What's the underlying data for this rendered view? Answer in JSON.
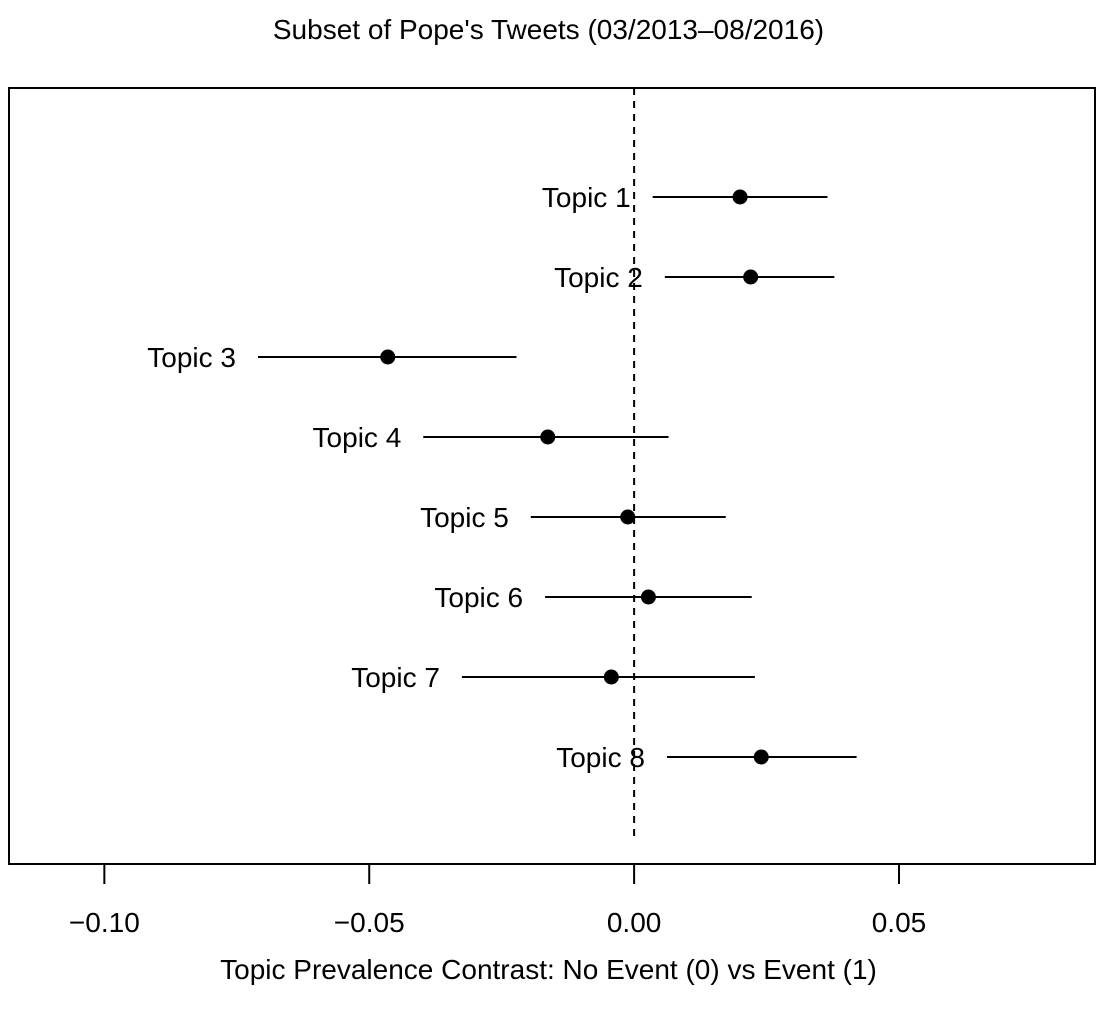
{
  "chart_data": {
    "type": "scatter",
    "title": "Subset of Pope's Tweets (03/2013–08/2016)",
    "xlabel": "Topic Prevalence Contrast:  No Event (0) vs Event (1)",
    "ylabel": "",
    "xlim": [
      -0.118,
      0.087
    ],
    "x_ticks": [
      -0.1,
      -0.05,
      0.0,
      0.05
    ],
    "x_tick_labels": [
      "−0.10",
      "−0.05",
      "0.00",
      "0.05"
    ],
    "reference_line": 0.0,
    "reference_line_style": "dashed",
    "grid": false,
    "legend": "none",
    "point_color": "#000000",
    "points": [
      {
        "label": "Topic 1",
        "estimate": 0.02,
        "lower": 0.0035,
        "upper": 0.0365
      },
      {
        "label": "Topic 2",
        "estimate": 0.022,
        "lower": 0.0058,
        "upper": 0.0378
      },
      {
        "label": "Topic 3",
        "estimate": -0.0465,
        "lower": -0.071,
        "upper": -0.0222
      },
      {
        "label": "Topic 4",
        "estimate": -0.0163,
        "lower": -0.0398,
        "upper": 0.0065
      },
      {
        "label": "Topic 5",
        "estimate": -0.0012,
        "lower": -0.0195,
        "upper": 0.0173
      },
      {
        "label": "Topic 6",
        "estimate": 0.0027,
        "lower": -0.0168,
        "upper": 0.0222
      },
      {
        "label": "Topic 7",
        "estimate": -0.0043,
        "lower": -0.0325,
        "upper": 0.0228
      },
      {
        "label": "Topic 8",
        "estimate": 0.024,
        "lower": 0.0062,
        "upper": 0.042
      }
    ]
  }
}
